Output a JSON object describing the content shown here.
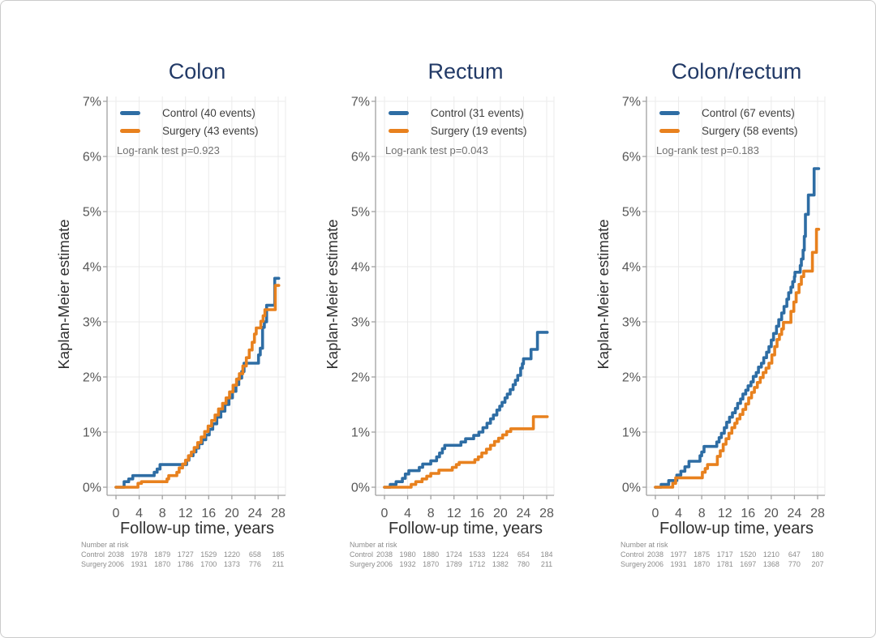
{
  "page": {
    "background": "#ffffff",
    "border_color": "#cbcbcb"
  },
  "colors": {
    "control": "#2e6da4",
    "surgery": "#e8811e",
    "title": "#223a67",
    "grid": "#ebebeb",
    "axis": "#a0a0a0",
    "tick_text": "#575757",
    "risk_text": "#8c8c8c"
  },
  "axes": {
    "ylabel": "Kaplan-Meier estimate",
    "xlabel": "Follow-up time, years",
    "yticks": [
      "0%",
      "1%",
      "2%",
      "3%",
      "4%",
      "5%",
      "6%",
      "7%"
    ],
    "xticks": [
      0,
      4,
      8,
      12,
      16,
      20,
      24,
      28
    ],
    "ylim": [
      0,
      7
    ],
    "xlim": [
      0,
      28.5
    ],
    "grid": true
  },
  "risk_header": "Number at risk",
  "chart_data": [
    {
      "type": "line",
      "step": true,
      "title": "Colon",
      "logrank": "Log-rank test p=0.923",
      "legend": [
        {
          "label": "Control (40 events)",
          "color": "control"
        },
        {
          "label": "Surgery (43 events)",
          "color": "surgery"
        }
      ],
      "series": [
        {
          "name": "Control",
          "color": "control",
          "steps": [
            [
              0,
              0
            ],
            [
              1.4,
              0.1
            ],
            [
              2.2,
              0.15
            ],
            [
              2.9,
              0.21
            ],
            [
              6.6,
              0.27
            ],
            [
              7.1,
              0.33
            ],
            [
              7.6,
              0.41
            ],
            [
              12.2,
              0.49
            ],
            [
              12.6,
              0.57
            ],
            [
              13.3,
              0.64
            ],
            [
              13.8,
              0.71
            ],
            [
              14.3,
              0.79
            ],
            [
              14.9,
              0.86
            ],
            [
              15.5,
              0.95
            ],
            [
              16.1,
              1.05
            ],
            [
              16.7,
              1.15
            ],
            [
              17.4,
              1.27
            ],
            [
              18.1,
              1.38
            ],
            [
              18.8,
              1.5
            ],
            [
              19.5,
              1.62
            ],
            [
              20.1,
              1.74
            ],
            [
              20.7,
              1.86
            ],
            [
              21.2,
              1.98
            ],
            [
              21.7,
              2.1
            ],
            [
              22.1,
              2.25
            ],
            [
              24.6,
              2.4
            ],
            [
              24.9,
              2.52
            ],
            [
              25.3,
              2.9
            ],
            [
              25.6,
              3.0
            ],
            [
              26.0,
              3.3
            ],
            [
              27.4,
              3.79
            ],
            [
              28.1,
              3.79
            ]
          ]
        },
        {
          "name": "Surgery",
          "color": "surgery",
          "steps": [
            [
              0,
              0
            ],
            [
              3.8,
              0.07
            ],
            [
              4.4,
              0.1
            ],
            [
              8.8,
              0.15
            ],
            [
              9.1,
              0.21
            ],
            [
              10.5,
              0.27
            ],
            [
              10.9,
              0.35
            ],
            [
              11.5,
              0.42
            ],
            [
              12.0,
              0.49
            ],
            [
              12.5,
              0.57
            ],
            [
              13.0,
              0.64
            ],
            [
              13.5,
              0.72
            ],
            [
              14.1,
              0.81
            ],
            [
              14.7,
              0.91
            ],
            [
              15.3,
              1.01
            ],
            [
              15.9,
              1.11
            ],
            [
              16.5,
              1.21
            ],
            [
              17.1,
              1.31
            ],
            [
              17.7,
              1.42
            ],
            [
              18.4,
              1.52
            ],
            [
              19.0,
              1.62
            ],
            [
              19.6,
              1.73
            ],
            [
              20.2,
              1.85
            ],
            [
              20.8,
              1.96
            ],
            [
              21.3,
              2.06
            ],
            [
              21.9,
              2.2
            ],
            [
              22.5,
              2.35
            ],
            [
              23.0,
              2.49
            ],
            [
              23.5,
              2.63
            ],
            [
              23.9,
              2.78
            ],
            [
              24.2,
              2.89
            ],
            [
              25.0,
              3.01
            ],
            [
              25.4,
              3.11
            ],
            [
              25.7,
              3.22
            ],
            [
              27.5,
              3.66
            ],
            [
              28.1,
              3.66
            ]
          ]
        }
      ],
      "risk": {
        "rows": [
          {
            "label": "Control",
            "values": [
              "2038",
              "1978",
              "1879",
              "1727",
              "1529",
              "1220",
              "658",
              "185"
            ]
          },
          {
            "label": "Surgery",
            "values": [
              "2006",
              "1931",
              "1870",
              "1786",
              "1700",
              "1373",
              "776",
              "211"
            ]
          }
        ]
      }
    },
    {
      "type": "line",
      "step": true,
      "title": "Rectum",
      "logrank": "Log-rank test p=0.043",
      "legend": [
        {
          "label": "Control (31 events)",
          "color": "control"
        },
        {
          "label": "Surgery (19 events)",
          "color": "surgery"
        }
      ],
      "series": [
        {
          "name": "Control",
          "color": "control",
          "steps": [
            [
              0,
              0
            ],
            [
              1.0,
              0.05
            ],
            [
              2.0,
              0.1
            ],
            [
              3.1,
              0.16
            ],
            [
              3.6,
              0.24
            ],
            [
              4.2,
              0.3
            ],
            [
              6.0,
              0.36
            ],
            [
              6.6,
              0.42
            ],
            [
              8.0,
              0.48
            ],
            [
              9.0,
              0.55
            ],
            [
              9.5,
              0.62
            ],
            [
              10.0,
              0.7
            ],
            [
              10.4,
              0.76
            ],
            [
              13.2,
              0.82
            ],
            [
              14.0,
              0.88
            ],
            [
              15.4,
              0.94
            ],
            [
              16.3,
              1.0
            ],
            [
              17.0,
              1.08
            ],
            [
              17.7,
              1.16
            ],
            [
              18.3,
              1.24
            ],
            [
              18.8,
              1.31
            ],
            [
              19.4,
              1.4
            ],
            [
              19.9,
              1.47
            ],
            [
              20.3,
              1.54
            ],
            [
              20.8,
              1.62
            ],
            [
              21.2,
              1.69
            ],
            [
              21.7,
              1.77
            ],
            [
              22.2,
              1.86
            ],
            [
              22.6,
              1.94
            ],
            [
              23.0,
              2.03
            ],
            [
              23.5,
              2.16
            ],
            [
              23.8,
              2.24
            ],
            [
              24.0,
              2.33
            ],
            [
              25.3,
              2.5
            ],
            [
              26.4,
              2.81
            ],
            [
              28.1,
              2.81
            ]
          ]
        },
        {
          "name": "Surgery",
          "color": "surgery",
          "steps": [
            [
              0,
              0
            ],
            [
              4.6,
              0.05
            ],
            [
              5.4,
              0.1
            ],
            [
              6.5,
              0.15
            ],
            [
              7.3,
              0.2
            ],
            [
              8.0,
              0.25
            ],
            [
              9.4,
              0.31
            ],
            [
              11.7,
              0.36
            ],
            [
              12.4,
              0.41
            ],
            [
              12.9,
              0.45
            ],
            [
              15.6,
              0.5
            ],
            [
              16.2,
              0.55
            ],
            [
              16.8,
              0.62
            ],
            [
              17.6,
              0.69
            ],
            [
              18.3,
              0.76
            ],
            [
              19.0,
              0.83
            ],
            [
              19.7,
              0.89
            ],
            [
              20.4,
              0.95
            ],
            [
              21.1,
              1.01
            ],
            [
              21.8,
              1.06
            ],
            [
              25.7,
              1.28
            ],
            [
              28.1,
              1.28
            ]
          ]
        }
      ],
      "risk": {
        "rows": [
          {
            "label": "Control",
            "values": [
              "2038",
              "1980",
              "1880",
              "1724",
              "1533",
              "1224",
              "654",
              "184"
            ]
          },
          {
            "label": "Surgery",
            "values": [
              "2006",
              "1932",
              "1870",
              "1789",
              "1712",
              "1382",
              "780",
              "211"
            ]
          }
        ]
      }
    },
    {
      "type": "line",
      "step": true,
      "title": "Colon/rectum",
      "logrank": "Log-rank test p=0.183",
      "legend": [
        {
          "label": "Control (67 events)",
          "color": "control"
        },
        {
          "label": "Surgery (58 events)",
          "color": "surgery"
        }
      ],
      "series": [
        {
          "name": "Control",
          "color": "control",
          "steps": [
            [
              0,
              0
            ],
            [
              1.0,
              0.05
            ],
            [
              2.3,
              0.12
            ],
            [
              3.7,
              0.22
            ],
            [
              4.4,
              0.29
            ],
            [
              5.1,
              0.37
            ],
            [
              5.8,
              0.47
            ],
            [
              7.7,
              0.57
            ],
            [
              8.0,
              0.64
            ],
            [
              8.4,
              0.74
            ],
            [
              10.6,
              0.82
            ],
            [
              11.0,
              0.9
            ],
            [
              11.4,
              0.98
            ],
            [
              11.9,
              1.08
            ],
            [
              12.3,
              1.18
            ],
            [
              12.8,
              1.27
            ],
            [
              13.3,
              1.35
            ],
            [
              13.8,
              1.43
            ],
            [
              14.2,
              1.52
            ],
            [
              14.7,
              1.6
            ],
            [
              15.1,
              1.69
            ],
            [
              15.6,
              1.76
            ],
            [
              16.0,
              1.84
            ],
            [
              16.5,
              1.91
            ],
            [
              16.9,
              2.01
            ],
            [
              17.4,
              2.08
            ],
            [
              17.8,
              2.18
            ],
            [
              18.3,
              2.25
            ],
            [
              18.7,
              2.35
            ],
            [
              19.2,
              2.45
            ],
            [
              19.6,
              2.55
            ],
            [
              20.0,
              2.67
            ],
            [
              20.4,
              2.79
            ],
            [
              20.9,
              2.92
            ],
            [
              21.3,
              3.04
            ],
            [
              21.8,
              3.16
            ],
            [
              22.2,
              3.28
            ],
            [
              22.7,
              3.41
            ],
            [
              23.0,
              3.53
            ],
            [
              23.4,
              3.63
            ],
            [
              23.7,
              3.73
            ],
            [
              24.0,
              3.82
            ],
            [
              24.1,
              3.9
            ],
            [
              25.0,
              4.02
            ],
            [
              25.2,
              4.14
            ],
            [
              25.5,
              4.3
            ],
            [
              25.7,
              4.55
            ],
            [
              25.9,
              4.95
            ],
            [
              26.4,
              5.3
            ],
            [
              27.4,
              5.78
            ],
            [
              28.2,
              5.78
            ]
          ]
        },
        {
          "name": "Surgery",
          "color": "surgery",
          "steps": [
            [
              0,
              0
            ],
            [
              3.0,
              0.07
            ],
            [
              3.5,
              0.17
            ],
            [
              8.1,
              0.27
            ],
            [
              8.6,
              0.34
            ],
            [
              9.0,
              0.41
            ],
            [
              10.7,
              0.56
            ],
            [
              11.2,
              0.66
            ],
            [
              11.7,
              0.78
            ],
            [
              12.2,
              0.88
            ],
            [
              12.7,
              0.98
            ],
            [
              13.2,
              1.08
            ],
            [
              13.7,
              1.16
            ],
            [
              14.1,
              1.24
            ],
            [
              14.6,
              1.32
            ],
            [
              15.1,
              1.41
            ],
            [
              15.6,
              1.51
            ],
            [
              16.1,
              1.62
            ],
            [
              16.6,
              1.72
            ],
            [
              17.1,
              1.81
            ],
            [
              17.6,
              1.9
            ],
            [
              18.1,
              1.99
            ],
            [
              18.6,
              2.08
            ],
            [
              19.1,
              2.16
            ],
            [
              19.6,
              2.25
            ],
            [
              20.1,
              2.4
            ],
            [
              20.6,
              2.55
            ],
            [
              21.0,
              2.68
            ],
            [
              21.4,
              2.77
            ],
            [
              21.8,
              2.87
            ],
            [
              22.1,
              2.99
            ],
            [
              23.4,
              3.19
            ],
            [
              23.9,
              3.36
            ],
            [
              24.3,
              3.53
            ],
            [
              24.8,
              3.68
            ],
            [
              25.2,
              3.82
            ],
            [
              25.6,
              3.92
            ],
            [
              27.1,
              4.26
            ],
            [
              27.8,
              4.68
            ],
            [
              28.2,
              4.68
            ]
          ]
        }
      ],
      "risk": {
        "rows": [
          {
            "label": "Control",
            "values": [
              "2038",
              "1977",
              "1875",
              "1717",
              "1520",
              "1210",
              "647",
              "180"
            ]
          },
          {
            "label": "Surgery",
            "values": [
              "2006",
              "1931",
              "1870",
              "1781",
              "1697",
              "1368",
              "770",
              "207"
            ]
          }
        ]
      }
    }
  ]
}
